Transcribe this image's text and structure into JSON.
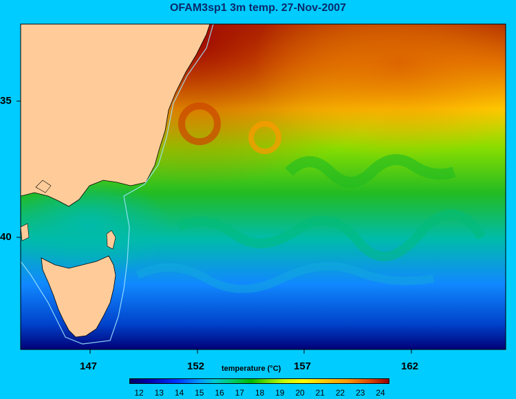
{
  "title": "OFAM3sp1 3m temp. 27-Nov-2007",
  "y_axis_labels": [
    "35",
    "40"
  ],
  "x_axis_labels": [
    "147",
    "152",
    "157",
    "162"
  ],
  "colorbar": {
    "label": "temperature (°C)",
    "ticks": [
      "12",
      "13",
      "14",
      "15",
      "16",
      "17",
      "18",
      "19",
      "20",
      "21",
      "22",
      "23",
      "24"
    ]
  },
  "colors": {
    "background": "#00ccff",
    "land": "#ffcc99",
    "title": "#0a2a6a"
  }
}
